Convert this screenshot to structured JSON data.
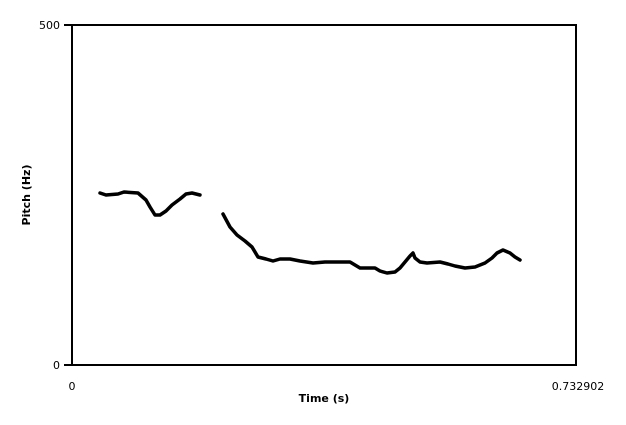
{
  "chart_data": {
    "type": "line",
    "xlabel": "Time (s)",
    "ylabel": "Pitch (Hz)",
    "xlim": [
      0,
      0.732902
    ],
    "ylim": [
      0,
      500
    ],
    "x_tick_labels": [
      "0",
      "0.732902"
    ],
    "y_tick_labels": [
      "500",
      "0"
    ],
    "grid": false,
    "line_color": "#000000",
    "series": [
      {
        "points": [
          [
            0.0407,
            252.9
          ],
          [
            0.0494,
            250.0
          ],
          [
            0.0669,
            251.5
          ],
          [
            0.0756,
            254.4
          ],
          [
            0.096,
            252.9
          ],
          [
            0.1076,
            242.6
          ],
          [
            0.1134,
            232.4
          ],
          [
            0.1207,
            220.6
          ],
          [
            0.128,
            220.6
          ],
          [
            0.1367,
            226.5
          ],
          [
            0.1454,
            235.3
          ],
          [
            0.1571,
            244.1
          ],
          [
            0.1658,
            251.5
          ],
          [
            0.1745,
            252.9
          ],
          [
            0.1861,
            250.0
          ]
        ]
      },
      {
        "points": [
          [
            0.2196,
            222.1
          ],
          [
            0.2298,
            202.9
          ],
          [
            0.2399,
            191.2
          ],
          [
            0.2516,
            182.4
          ],
          [
            0.2618,
            173.5
          ],
          [
            0.2705,
            158.8
          ],
          [
            0.2821,
            155.9
          ],
          [
            0.2923,
            152.9
          ],
          [
            0.3025,
            155.9
          ],
          [
            0.317,
            155.9
          ],
          [
            0.3316,
            152.9
          ],
          [
            0.3505,
            150.0
          ],
          [
            0.3679,
            151.5
          ],
          [
            0.3897,
            151.5
          ],
          [
            0.4043,
            151.5
          ],
          [
            0.4115,
            147.1
          ],
          [
            0.4188,
            142.6
          ],
          [
            0.4304,
            142.6
          ],
          [
            0.4406,
            142.6
          ],
          [
            0.4479,
            138.2
          ],
          [
            0.4581,
            135.3
          ],
          [
            0.4697,
            136.8
          ],
          [
            0.477,
            142.6
          ],
          [
            0.4843,
            151.5
          ],
          [
            0.4915,
            160.3
          ],
          [
            0.4959,
            164.7
          ],
          [
            0.4988,
            157.4
          ],
          [
            0.5061,
            151.5
          ],
          [
            0.5162,
            150.0
          ],
          [
            0.5351,
            151.5
          ],
          [
            0.5468,
            148.5
          ],
          [
            0.557,
            145.6
          ],
          [
            0.5715,
            142.6
          ],
          [
            0.586,
            144.1
          ],
          [
            0.6006,
            150.0
          ],
          [
            0.6108,
            157.4
          ],
          [
            0.618,
            164.7
          ],
          [
            0.6268,
            169.1
          ],
          [
            0.6369,
            164.7
          ],
          [
            0.6442,
            158.8
          ],
          [
            0.6515,
            154.4
          ]
        ]
      }
    ]
  }
}
